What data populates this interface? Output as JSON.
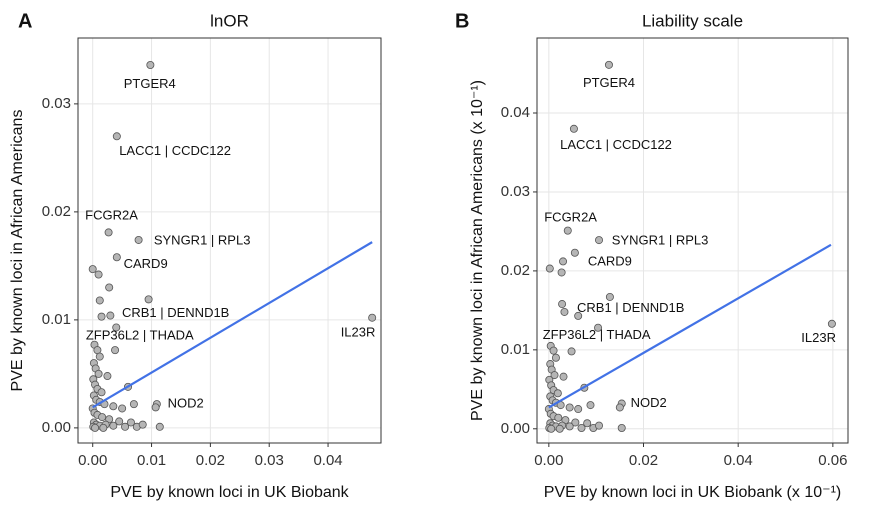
{
  "chart_data": [
    {
      "type": "scatter",
      "panel_label": "A",
      "title": "lnOR",
      "x_label": "PVE by known loci in UK Biobank",
      "y_label": "PVE by known loci in African Americans",
      "color": "#b5b5b5",
      "edge_color": "#555555",
      "grid": true,
      "xlim": [
        -0.0025,
        0.049
      ],
      "ylim": [
        -0.0014,
        0.0361
      ],
      "xticks": [
        {
          "value": 0,
          "label": "0.00"
        },
        {
          "value": 0.01,
          "label": "0.01"
        },
        {
          "value": 0.02,
          "label": "0.02"
        },
        {
          "value": 0.03,
          "label": "0.03"
        },
        {
          "value": 0.04,
          "label": "0.04"
        }
      ],
      "yticks": [
        {
          "value": 0,
          "label": "0.00"
        },
        {
          "value": 0.01,
          "label": "0.01"
        },
        {
          "value": 0.02,
          "label": "0.02"
        },
        {
          "value": 0.03,
          "label": "0.03"
        }
      ],
      "x": [
        0.0098,
        0.0041,
        0.0027,
        0.0078,
        0.0041,
        0.0095,
        0.0475,
        0.0109,
        0.0107,
        0.0114,
        0.0,
        0.001,
        0.0012,
        0.0015,
        0.003,
        0.004,
        0.0003,
        0.0008,
        0.0012,
        0.0038,
        0.0002,
        0.0005,
        0.001,
        0.0025,
        0.0001,
        0.0004,
        0.0008,
        0.0015,
        0.006,
        0.0002,
        0.0006,
        0.0012,
        0.002,
        0.0035,
        0.005,
        0.0,
        0.0003,
        0.0008,
        0.0016,
        0.0028,
        0.0045,
        0.0065,
        0.0002,
        0.0006,
        0.0012,
        0.0022,
        0.0035,
        0.0055,
        0.0075,
        0.0001,
        0.0004,
        0.0018,
        0.0085,
        0.007,
        0.0028
      ],
      "values": [
        0.0336,
        0.027,
        0.0181,
        0.0174,
        0.0158,
        0.0119,
        0.0102,
        0.0022,
        0.0019,
        0.0001,
        0.0147,
        0.0142,
        0.0118,
        0.0103,
        0.0104,
        0.0093,
        0.0077,
        0.0072,
        0.0066,
        0.0072,
        0.006,
        0.0055,
        0.005,
        0.0048,
        0.0045,
        0.004,
        0.0036,
        0.0033,
        0.0038,
        0.003,
        0.0026,
        0.0024,
        0.0022,
        0.002,
        0.0018,
        0.0018,
        0.0014,
        0.0012,
        0.001,
        0.0008,
        0.0006,
        0.0005,
        0.0005,
        0.0003,
        0.0002,
        0.0003,
        0.0002,
        0.0001,
        0.0001,
        0.0001,
        0.0,
        0.0,
        0.0003,
        0.0022,
        0.013
      ],
      "fit": {
        "color": "#4272e6",
        "x": [
          0,
          0.0475
        ],
        "values": [
          0.0019,
          0.0172
        ]
      },
      "annotations": [
        {
          "text": "PTGER4",
          "x": 0.0097,
          "y": 0.0318
        },
        {
          "text": "LACC1 | CCDC122",
          "x": 0.014,
          "y": 0.0256
        },
        {
          "text": "FCGR2A",
          "x": 0.0032,
          "y": 0.0196
        },
        {
          "text": "SYNGR1 | RPL3",
          "x": 0.0186,
          "y": 0.0173
        },
        {
          "text": "CARD9",
          "x": 0.009,
          "y": 0.0151
        },
        {
          "text": "CRB1 | DENND1B",
          "x": 0.0141,
          "y": 0.0106
        },
        {
          "text": "ZFP36L2 | THADA",
          "x": 0.008,
          "y": 0.0085
        },
        {
          "text": "IL23R",
          "x": 0.0451,
          "y": 0.0088
        },
        {
          "text": "NOD2",
          "x": 0.0158,
          "y": 0.0022
        }
      ]
    },
    {
      "type": "scatter",
      "panel_label": "B",
      "title": "Liability scale",
      "x_label": "PVE by known loci in UK Biobank (x 10⁻¹)",
      "y_label": "PVE by known loci in African Americans (x 10⁻¹)",
      "color": "#b5b5b5",
      "edge_color": "#555555",
      "grid": true,
      "xlim": [
        -0.0025,
        0.0632
      ],
      "ylim": [
        -0.0018,
        0.0495
      ],
      "xticks": [
        {
          "value": 0,
          "label": "0.00"
        },
        {
          "value": 0.02,
          "label": "0.02"
        },
        {
          "value": 0.04,
          "label": "0.04"
        },
        {
          "value": 0.06,
          "label": "0.06"
        }
      ],
      "yticks": [
        {
          "value": 0,
          "label": "0.00"
        },
        {
          "value": 0.01,
          "label": "0.01"
        },
        {
          "value": 0.02,
          "label": "0.02"
        },
        {
          "value": 0.03,
          "label": "0.03"
        },
        {
          "value": 0.04,
          "label": "0.04"
        }
      ],
      "x": [
        0.0127,
        0.0053,
        0.004,
        0.0106,
        0.0055,
        0.0129,
        0.0598,
        0.0154,
        0.015,
        0.0154,
        0.0104,
        0.0002,
        0.0027,
        0.003,
        0.0028,
        0.0062,
        0.0033,
        0.0004,
        0.001,
        0.0015,
        0.0048,
        0.0003,
        0.0006,
        0.0012,
        0.0031,
        0.0001,
        0.0005,
        0.001,
        0.0019,
        0.0075,
        0.0003,
        0.0008,
        0.0015,
        0.0025,
        0.0044,
        0.0062,
        0.0,
        0.0004,
        0.001,
        0.002,
        0.0035,
        0.0056,
        0.0081,
        0.0003,
        0.0008,
        0.0015,
        0.0028,
        0.0044,
        0.0069,
        0.0094,
        0.0001,
        0.0005,
        0.0023,
        0.0106,
        0.0088
      ],
      "values": [
        0.0461,
        0.038,
        0.0251,
        0.0239,
        0.0223,
        0.0167,
        0.0133,
        0.0032,
        0.0027,
        0.0001,
        0.0128,
        0.0203,
        0.0198,
        0.0212,
        0.0158,
        0.0143,
        0.0148,
        0.0105,
        0.0099,
        0.009,
        0.0098,
        0.0082,
        0.0075,
        0.0068,
        0.0066,
        0.0062,
        0.0055,
        0.0049,
        0.0045,
        0.0052,
        0.0041,
        0.0036,
        0.0033,
        0.003,
        0.0027,
        0.0025,
        0.0025,
        0.0019,
        0.0016,
        0.0014,
        0.0011,
        0.0008,
        0.0007,
        0.0007,
        0.0004,
        0.0003,
        0.0004,
        0.0003,
        0.0001,
        0.0001,
        0.0001,
        0.0,
        0.0,
        0.0004,
        0.003
      ],
      "fit": {
        "color": "#4272e6",
        "x": [
          0,
          0.0596
        ],
        "values": [
          0.0027,
          0.0233
        ]
      },
      "annotations": [
        {
          "text": "PTGER4",
          "x": 0.0127,
          "y": 0.0437
        },
        {
          "text": "LACC1 | CCDC122",
          "x": 0.0142,
          "y": 0.0359
        },
        {
          "text": "FCGR2A",
          "x": 0.0046,
          "y": 0.0267
        },
        {
          "text": "SYNGR1 | RPL3",
          "x": 0.0235,
          "y": 0.0238
        },
        {
          "text": "CARD9",
          "x": 0.0129,
          "y": 0.0211
        },
        {
          "text": "CRB1 | DENND1B",
          "x": 0.0173,
          "y": 0.0152
        },
        {
          "text": "ZFP36L2 | THADA",
          "x": 0.0101,
          "y": 0.0118
        },
        {
          "text": "IL23R",
          "x": 0.057,
          "y": 0.0114
        },
        {
          "text": "NOD2",
          "x": 0.0211,
          "y": 0.0032
        }
      ]
    }
  ]
}
